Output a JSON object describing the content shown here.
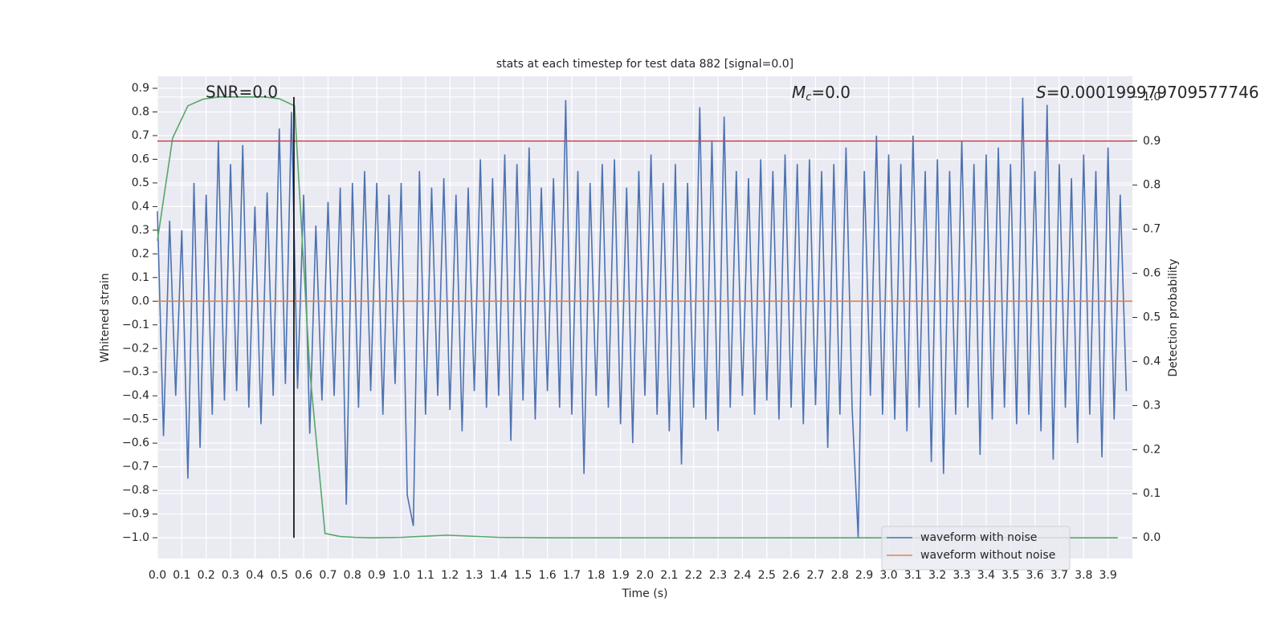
{
  "chart_data": {
    "type": "line",
    "title": "stats at each timestep for test data 882 [signal=0.0]",
    "xlabel": "Time (s)",
    "ylabel": "Whitened strain",
    "y2label": "Detection probability",
    "annotations": [
      "SNR=0.0",
      {
        "symbol": "M",
        "subscript": "c",
        "text": "=0.0"
      },
      {
        "symbol": "S",
        "text": "=0.000199979709577746"
      }
    ],
    "xlim": [
      0,
      4.0
    ],
    "ylim": [
      -1.088,
      0.951
    ],
    "y2lim": [
      -0.047,
      1.047
    ],
    "xticks": [
      {
        "value": 0,
        "label": "0.0"
      },
      0.1,
      0.2,
      0.3,
      0.4,
      0.5,
      0.6,
      0.7,
      0.8,
      0.9,
      {
        "value": 1,
        "label": "1.0"
      },
      1.1,
      1.2,
      1.3,
      1.4,
      1.5,
      1.6,
      1.7,
      1.8,
      1.9,
      {
        "value": 2,
        "label": "2.0"
      },
      2.1,
      2.2,
      2.3,
      2.4,
      2.5,
      2.6,
      2.7,
      2.8,
      2.9,
      {
        "value": 3,
        "label": "3.0"
      },
      3.1,
      3.2,
      3.3,
      3.4,
      3.5,
      3.6,
      3.7,
      3.8,
      3.9
    ],
    "yticks": [
      {
        "value": 0.9,
        "label": "0.9"
      },
      {
        "value": 0.8,
        "label": "0.8"
      },
      {
        "value": 0.7,
        "label": "0.7"
      },
      {
        "value": 0.6,
        "label": "0.6"
      },
      {
        "value": 0.5,
        "label": "0.5"
      },
      {
        "value": 0.4,
        "label": "0.4"
      },
      {
        "value": 0.3,
        "label": "0.3"
      },
      {
        "value": 0.2,
        "label": "0.2"
      },
      {
        "value": 0.1,
        "label": "0.1"
      },
      {
        "value": 0,
        "label": "0.0"
      },
      {
        "value": -0.1,
        "label": "−0.1"
      },
      {
        "value": -0.2,
        "label": "−0.2"
      },
      {
        "value": -0.3,
        "label": "−0.3"
      },
      {
        "value": -0.4,
        "label": "−0.4"
      },
      {
        "value": -0.5,
        "label": "−0.5"
      },
      {
        "value": -0.6,
        "label": "−0.6"
      },
      {
        "value": -0.7,
        "label": "−0.7"
      },
      {
        "value": -0.8,
        "label": "−0.8"
      },
      {
        "value": -0.9,
        "label": "−0.9"
      },
      {
        "value": -1,
        "label": "−1.0"
      }
    ],
    "y2ticks": [
      {
        "value": 0,
        "label": "0.0"
      },
      0.1,
      0.2,
      0.3,
      0.4,
      0.5,
      0.6,
      0.7,
      0.8,
      0.9,
      {
        "value": 1,
        "label": "1.0"
      }
    ],
    "grid": true,
    "legend": "lower right",
    "series": [
      {
        "name": "waveform with noise",
        "color": "#4c72b0",
        "x": [
          0,
          0.025,
          0.05,
          0.075,
          0.1,
          0.125,
          0.15,
          0.175,
          0.2,
          0.225,
          0.25,
          0.275,
          0.3,
          0.325,
          0.35,
          0.375,
          0.4,
          0.425,
          0.45,
          0.475,
          0.5,
          0.525,
          0.55,
          0.575,
          0.6,
          0.625,
          0.65,
          0.675,
          0.7,
          0.725,
          0.75,
          0.775,
          0.8,
          0.825,
          0.85,
          0.875,
          0.9,
          0.925,
          0.95,
          0.975,
          1,
          1.025,
          1.05,
          1.075,
          1.1,
          1.125,
          1.15,
          1.175,
          1.2,
          1.225,
          1.25,
          1.275,
          1.3,
          1.325,
          1.35,
          1.375,
          1.4,
          1.425,
          1.45,
          1.475,
          1.5,
          1.525,
          1.55,
          1.575,
          1.6,
          1.625,
          1.65,
          1.675,
          1.7,
          1.725,
          1.75,
          1.775,
          1.8,
          1.825,
          1.85,
          1.875,
          1.9,
          1.925,
          1.95,
          1.975,
          2,
          2.025,
          2.05,
          2.075,
          2.1,
          2.125,
          2.15,
          2.175,
          2.2,
          2.225,
          2.25,
          2.275,
          2.3,
          2.325,
          2.35,
          2.375,
          2.4,
          2.425,
          2.45,
          2.475,
          2.5,
          2.525,
          2.55,
          2.575,
          2.6,
          2.625,
          2.65,
          2.675,
          2.7,
          2.725,
          2.75,
          2.775,
          2.8,
          2.825,
          2.85,
          2.875,
          2.9,
          2.925,
          2.95,
          2.975,
          3,
          3.025,
          3.05,
          3.075,
          3.1,
          3.125,
          3.15,
          3.175,
          3.2,
          3.225,
          3.25,
          3.275,
          3.3,
          3.325,
          3.35,
          3.375,
          3.4,
          3.425,
          3.45,
          3.475,
          3.5,
          3.525,
          3.55,
          3.575,
          3.6,
          3.625,
          3.65,
          3.675,
          3.7,
          3.725,
          3.75,
          3.775,
          3.8,
          3.825,
          3.85,
          3.875,
          3.9,
          3.925,
          3.95,
          3.975
        ],
        "values": [
          0.38,
          -0.57,
          0.34,
          -0.4,
          0.3,
          -0.75,
          0.5,
          -0.62,
          0.45,
          -0.48,
          0.68,
          -0.42,
          0.58,
          -0.38,
          0.66,
          -0.45,
          0.4,
          -0.52,
          0.46,
          -0.4,
          0.73,
          -0.35,
          0.8,
          -0.37,
          0.45,
          -0.56,
          0.32,
          -0.42,
          0.42,
          -0.4,
          0.48,
          -0.86,
          0.5,
          -0.45,
          0.55,
          -0.38,
          0.5,
          -0.48,
          0.45,
          -0.35,
          0.5,
          -0.82,
          -0.95,
          0.55,
          -0.48,
          0.48,
          -0.4,
          0.52,
          -0.46,
          0.45,
          -0.55,
          0.48,
          -0.38,
          0.6,
          -0.45,
          0.52,
          -0.4,
          0.62,
          -0.59,
          0.58,
          -0.42,
          0.65,
          -0.5,
          0.48,
          -0.38,
          0.52,
          -0.45,
          0.85,
          -0.48,
          0.55,
          -0.73,
          0.5,
          -0.4,
          0.58,
          -0.45,
          0.6,
          -0.52,
          0.48,
          -0.6,
          0.55,
          -0.4,
          0.62,
          -0.48,
          0.5,
          -0.55,
          0.58,
          -0.69,
          0.5,
          -0.45,
          0.82,
          -0.5,
          0.68,
          -0.55,
          0.78,
          -0.45,
          0.55,
          -0.4,
          0.52,
          -0.48,
          0.6,
          -0.42,
          0.55,
          -0.5,
          0.62,
          -0.45,
          0.58,
          -0.52,
          0.6,
          -0.44,
          0.55,
          -0.62,
          0.58,
          -0.48,
          0.65,
          -0.45,
          -1.0,
          0.55,
          -0.4,
          0.7,
          -0.48,
          0.62,
          -0.5,
          0.58,
          -0.55,
          0.7,
          -0.45,
          0.55,
          -0.68,
          0.6,
          -0.73,
          0.55,
          -0.48,
          0.68,
          -0.45,
          0.58,
          -0.65,
          0.62,
          -0.5,
          0.65,
          -0.45,
          0.58,
          -0.52,
          0.86,
          -0.48,
          0.55,
          -0.55,
          0.83,
          -0.67,
          0.58,
          -0.45,
          0.52,
          -0.6,
          0.62,
          -0.48,
          0.55,
          -0.66,
          0.65,
          -0.5,
          0.45,
          -0.38
        ]
      },
      {
        "name": "waveform without noise",
        "color": "#dd8452",
        "x": [
          0,
          4.0
        ],
        "values": [
          0,
          0
        ]
      },
      {
        "color": "#55a868",
        "axis": "y2",
        "x": [
          0,
          0.0625,
          0.125,
          0.1875,
          0.25,
          0.3125,
          0.375,
          0.4375,
          0.5,
          0.5625,
          0.625,
          0.6875,
          0.75,
          0.8125,
          0.875,
          1.0,
          1.1875,
          1.4,
          1.6,
          2.0,
          2.5,
          3.0,
          3.5,
          3.94
        ],
        "values": [
          0.674,
          0.907,
          0.98,
          0.995,
          1.0,
          1.0,
          1.0,
          1.0,
          0.996,
          0.98,
          0.38,
          0.01,
          0.003,
          0.001,
          0.0,
          0.001,
          0.006,
          0.001,
          0.0,
          0.0,
          0.0,
          0.0,
          0.0,
          0.0
        ]
      }
    ],
    "hlines": [
      {
        "y": 0.9,
        "axis": "y2",
        "color": "#c44e52"
      }
    ],
    "vlines": [
      {
        "x": 0.56,
        "ymin": 0,
        "ymax": 1,
        "axis": "y2",
        "color": "#000000"
      }
    ]
  }
}
